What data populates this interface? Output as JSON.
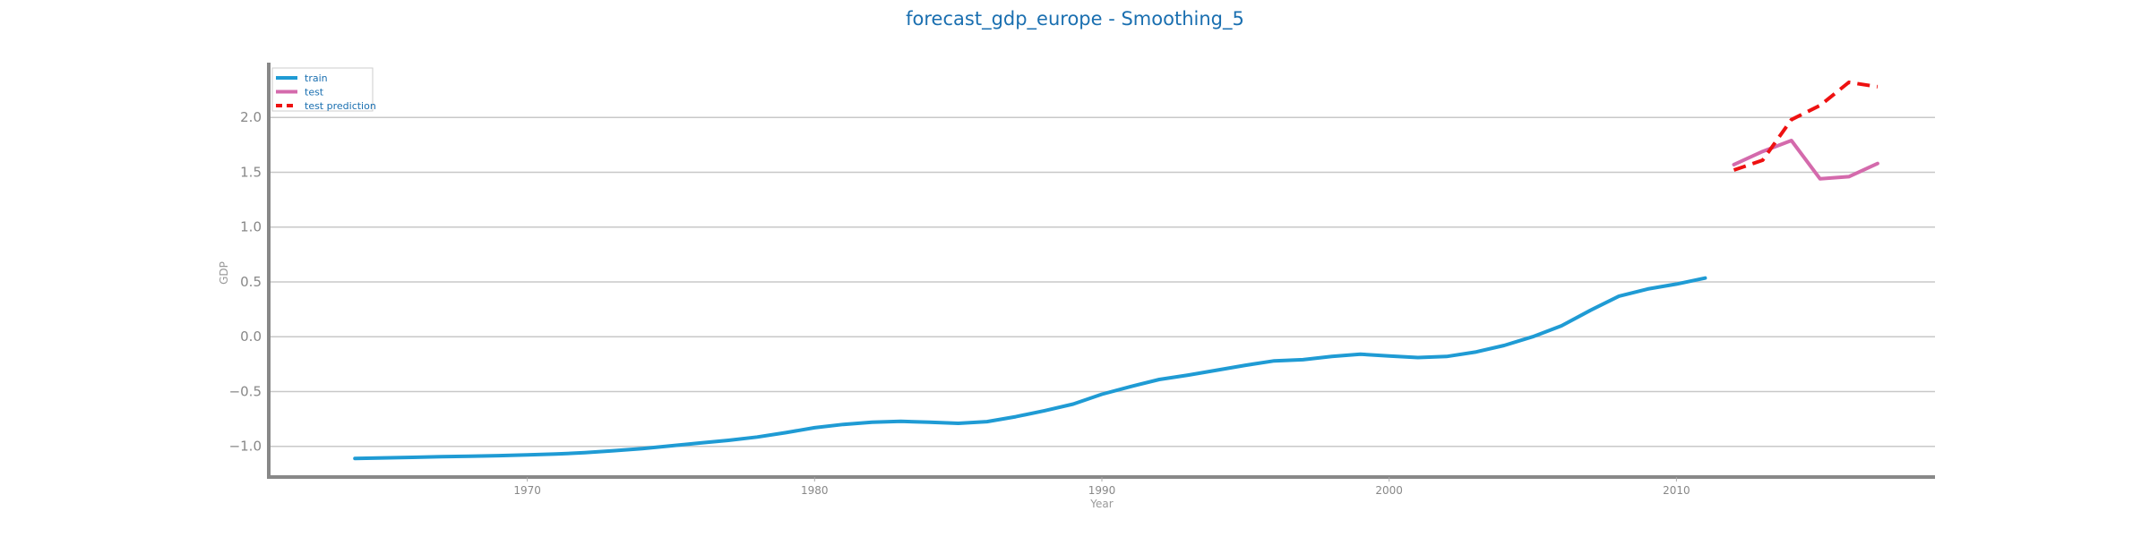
{
  "chart_data": {
    "type": "line",
    "title": "forecast_gdp_europe - Smoothing_5",
    "xlabel": "Year",
    "ylabel": "GDP",
    "xlim": [
      1961,
      2019
    ],
    "ylim": [
      -1.28,
      2.5
    ],
    "x_ticks": [
      "1970",
      "1980",
      "1990",
      "2000",
      "2010"
    ],
    "y_ticks": [
      "−1.0",
      "−0.5",
      "0.0",
      "0.5",
      "1.0",
      "1.5",
      "2.0"
    ],
    "grid": "horizontal",
    "legend_position": "top-left",
    "series": [
      {
        "name": "train",
        "color": "#1f9bd4",
        "style": "solid",
        "x": [
          1964,
          1965,
          1966,
          1967,
          1968,
          1969,
          1970,
          1971,
          1972,
          1973,
          1974,
          1975,
          1976,
          1977,
          1978,
          1979,
          1980,
          1981,
          1982,
          1983,
          1984,
          1985,
          1986,
          1987,
          1988,
          1989,
          1990,
          1991,
          1992,
          1993,
          1994,
          1995,
          1996,
          1997,
          1998,
          1999,
          2000,
          2001,
          2002,
          2003,
          2004,
          2005,
          2006,
          2007,
          2008,
          2009,
          2010,
          2011
        ],
        "y": [
          -1.11,
          -1.105,
          -1.1,
          -1.095,
          -1.09,
          -1.085,
          -1.078,
          -1.07,
          -1.058,
          -1.04,
          -1.02,
          -0.995,
          -0.97,
          -0.945,
          -0.915,
          -0.875,
          -0.83,
          -0.8,
          -0.78,
          -0.772,
          -0.78,
          -0.79,
          -0.775,
          -0.73,
          -0.675,
          -0.615,
          -0.525,
          -0.455,
          -0.39,
          -0.35,
          -0.305,
          -0.26,
          -0.22,
          -0.21,
          -0.18,
          -0.16,
          -0.175,
          -0.19,
          -0.18,
          -0.14,
          -0.08,
          0.0,
          0.1,
          0.24,
          0.37,
          0.435,
          0.48,
          0.535
        ]
      },
      {
        "name": "test",
        "color": "#d46aac",
        "style": "solid",
        "x": [
          2012,
          2013,
          2014,
          2015,
          2016,
          2017
        ],
        "y": [
          1.57,
          1.69,
          1.79,
          1.44,
          1.46,
          1.58
        ]
      },
      {
        "name": "test prediction",
        "color": "#ee1111",
        "style": "dashed",
        "x": [
          2012,
          2013,
          2014,
          2015,
          2016,
          2017
        ],
        "y": [
          1.52,
          1.61,
          1.98,
          2.11,
          2.32,
          2.28
        ]
      }
    ]
  }
}
